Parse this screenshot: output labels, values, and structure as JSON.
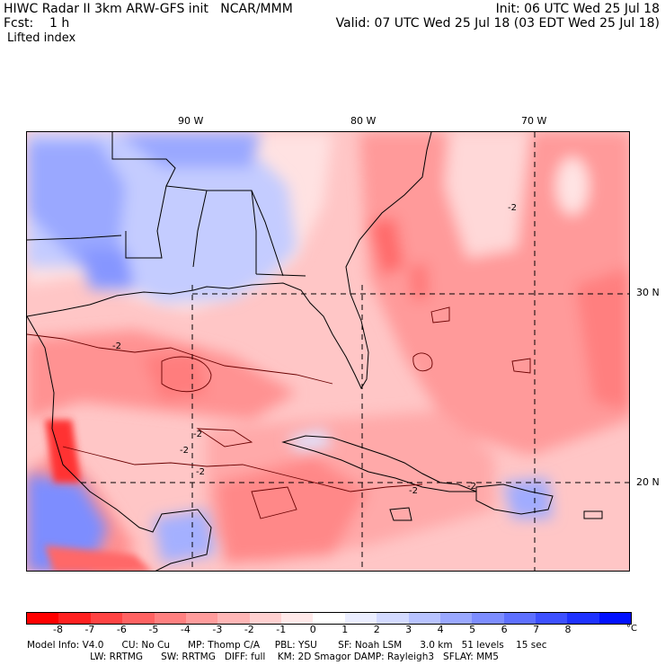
{
  "header": {
    "line1_left": "HIWC Radar II 3km ARW-GFS init   NCAR/MMM",
    "line2_left": "Fcst:    1 h",
    "field": "Lifted index",
    "line1_right": "Init: 06 UTC Wed 25 Jul 18",
    "line2_right": "Valid: 07 UTC Wed 25 Jul 18 (03 EDT Wed 25 Jul 18)"
  },
  "map": {
    "lon_labels": [
      "90 W",
      "80 W",
      "70 W"
    ],
    "lat_labels": [
      "30 N",
      "20 N"
    ],
    "contour_labels": [
      "-2",
      "-2",
      "-2",
      "-2",
      "-2",
      "-2",
      "-2"
    ]
  },
  "colorbar": {
    "ticks": [
      "-8",
      "-7",
      "-6",
      "-5",
      "-4",
      "-3",
      "-2",
      "-1",
      "0",
      "1",
      "2",
      "3",
      "4",
      "5",
      "6",
      "7",
      "8"
    ],
    "unit": "°C",
    "colors": [
      "#ff0000",
      "#ff2020",
      "#ff4343",
      "#ff6262",
      "#ff8080",
      "#ff9c9c",
      "#ffb6b6",
      "#ffd0d0",
      "#ffe9e9",
      "#ffffff",
      "#ebeeff",
      "#d3daff",
      "#b8c3ff",
      "#9aa8ff",
      "#7d8dff",
      "#5e70ff",
      "#3d50ff",
      "#1e32ff",
      "#0010ff"
    ]
  },
  "footer": {
    "line1": "Model Info: V4.0      CU: No Cu      MP: Thomp C/A     PBL: YSU       SF: Noah LSM      3.0 km   51 levels    15 sec",
    "line2": "                     LW: RRTMG      SW: RRTMG   DIFF: full    KM: 2D Smagor DAMP: Rayleigh3   SFLAY: MM5"
  }
}
